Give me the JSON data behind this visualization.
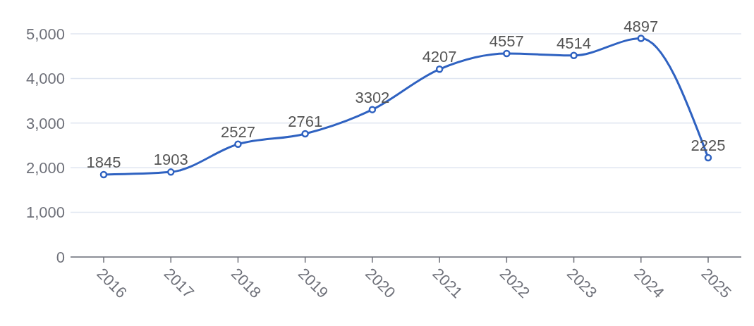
{
  "chart_data": {
    "type": "line",
    "categories": [
      "2016",
      "2017",
      "2018",
      "2019",
      "2020",
      "2021",
      "2022",
      "2023",
      "2024",
      "2025"
    ],
    "series": [
      {
        "color": "#2f62c1",
        "values": [
          1845,
          1903,
          2527,
          2761,
          3302,
          4207,
          4557,
          4514,
          4897,
          2225
        ]
      }
    ],
    "ylim": [
      0,
      5000
    ],
    "yticks": [
      {
        "value": 0,
        "label": "0"
      },
      {
        "value": 1000,
        "label": "1,000"
      },
      {
        "value": 2000,
        "label": "2,000"
      },
      {
        "value": 3000,
        "label": "3,000"
      },
      {
        "value": 4000,
        "label": "4,000"
      },
      {
        "value": 5000,
        "label": "5,000"
      }
    ],
    "grid": "y",
    "marker": "circle",
    "line_style": "solid",
    "data_labels": true
  }
}
